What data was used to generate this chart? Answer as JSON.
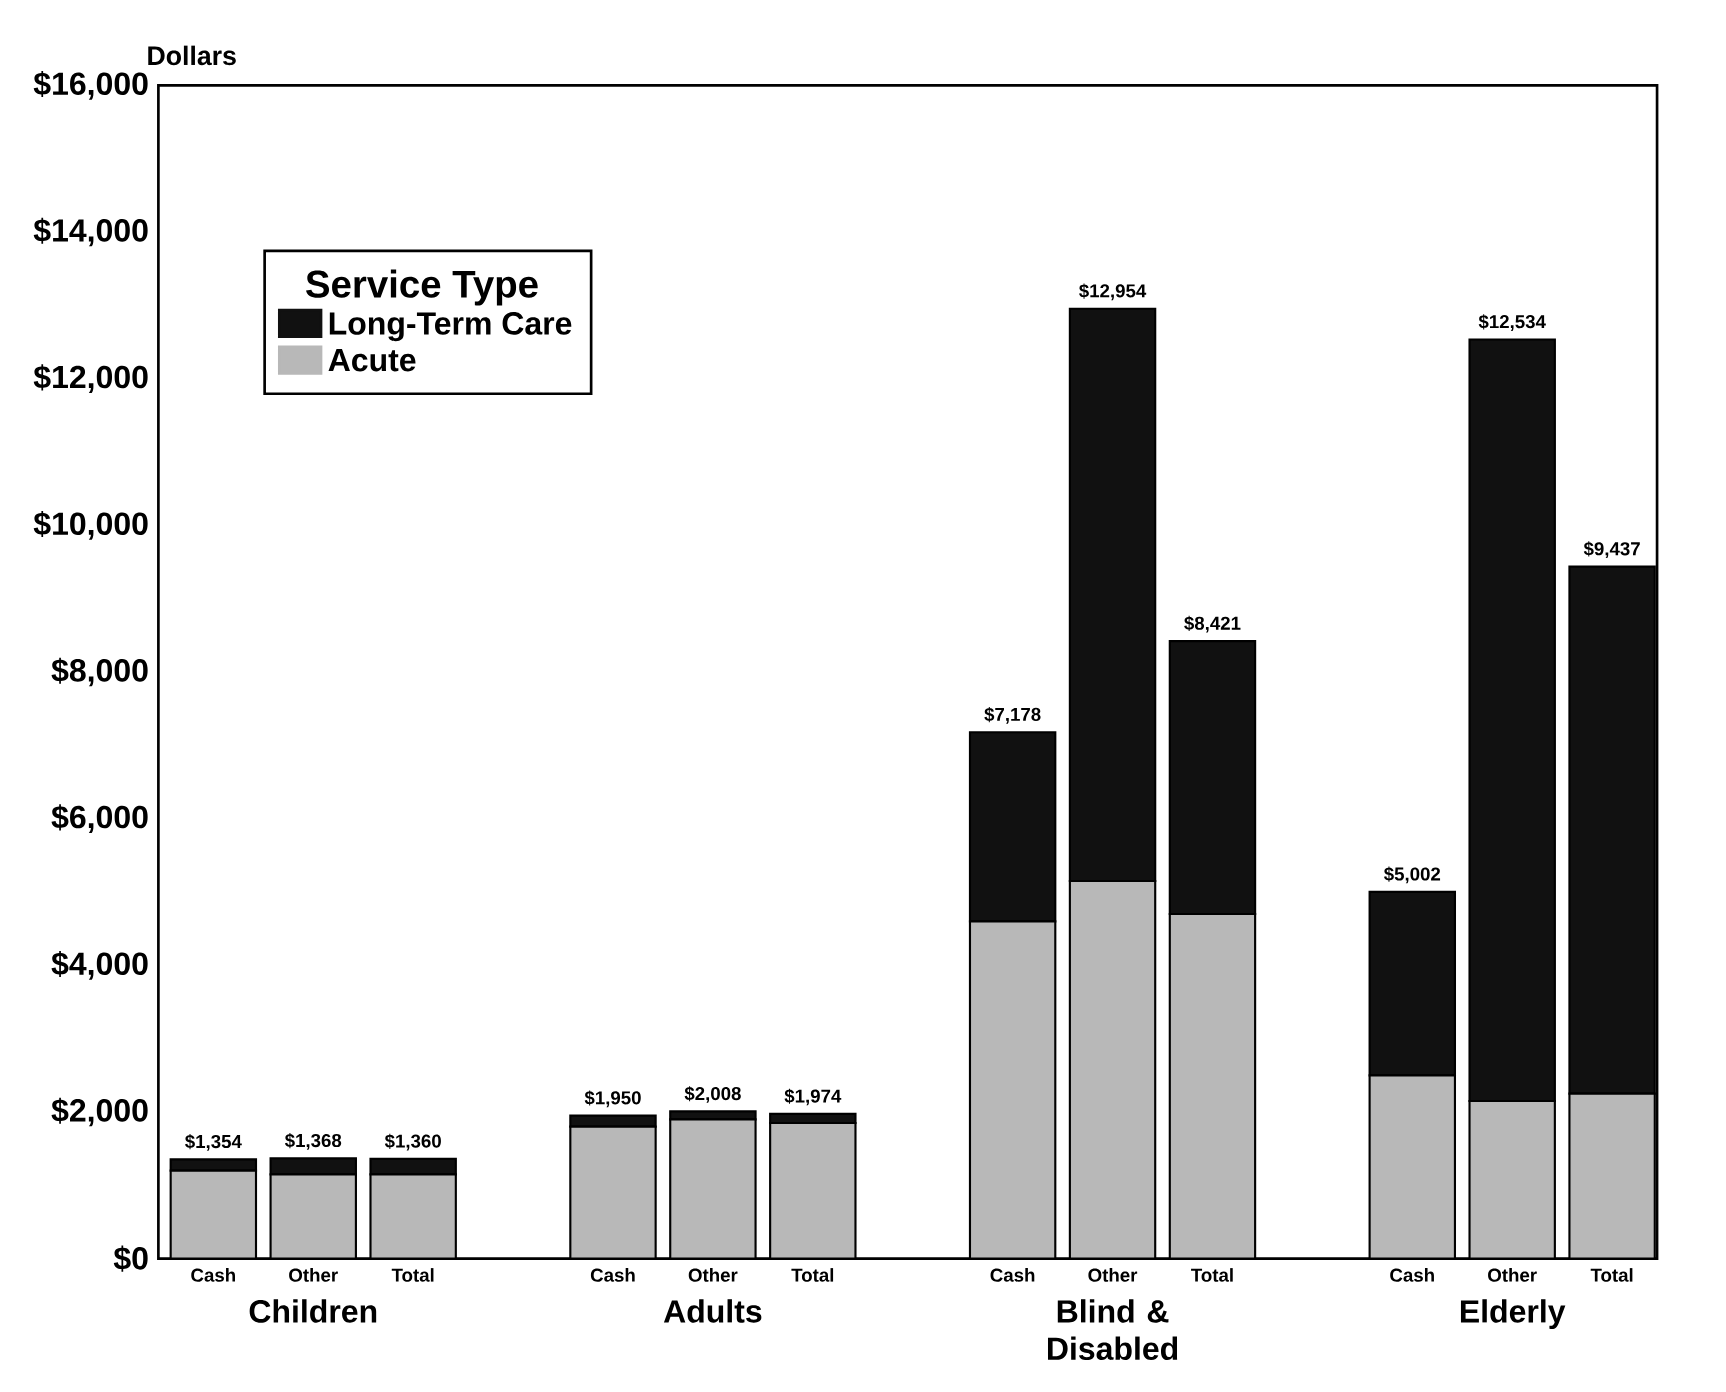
{
  "chart_data": {
    "type": "bar",
    "stacked": true,
    "ylabel": "Dollars",
    "legend_title": "Service Type",
    "legend": "top left",
    "categories": [
      "Cash",
      "Other",
      "Total",
      "Cash",
      "Other",
      "Total",
      "Cash",
      "Other",
      "Total",
      "Cash",
      "Other",
      "Total"
    ],
    "series": [
      {
        "name": "Acute",
        "color": "#b8b8b8",
        "values": [
          1200,
          1150,
          1150,
          1800,
          1900,
          1850,
          4600,
          5150,
          4700,
          2500,
          2150,
          2250
        ]
      },
      {
        "name": "Long-Term Care",
        "color": "#111111",
        "values": [
          154,
          218,
          210,
          150,
          108,
          124,
          2578,
          7804,
          3721,
          2502,
          10384,
          7187
        ]
      }
    ],
    "totals": [
      "$1,354",
      "$1,368",
      "$1,360",
      "$1,950",
      "$2,008",
      "$1,974",
      "$7,178",
      "$12,954",
      "$8,421",
      "$5,002",
      "$12,534",
      "$9,437"
    ],
    "annotations": [
      "Children",
      "Adults",
      "Blind & Disabled",
      "Elderly"
    ],
    "ylim": [
      0,
      16000
    ],
    "yticks": [
      {
        "value": 0,
        "label": "$0"
      },
      {
        "value": 2000,
        "label": "$2,000"
      },
      {
        "value": 4000,
        "label": "$4,000"
      },
      {
        "value": 6000,
        "label": "$6,000"
      },
      {
        "value": 8000,
        "label": "$8,000"
      },
      {
        "value": 10000,
        "label": "$10,000"
      },
      {
        "value": 12000,
        "label": "$12,000"
      },
      {
        "value": 14000,
        "label": "$14,000"
      },
      {
        "value": 16000,
        "label": "$16,000"
      }
    ]
  }
}
